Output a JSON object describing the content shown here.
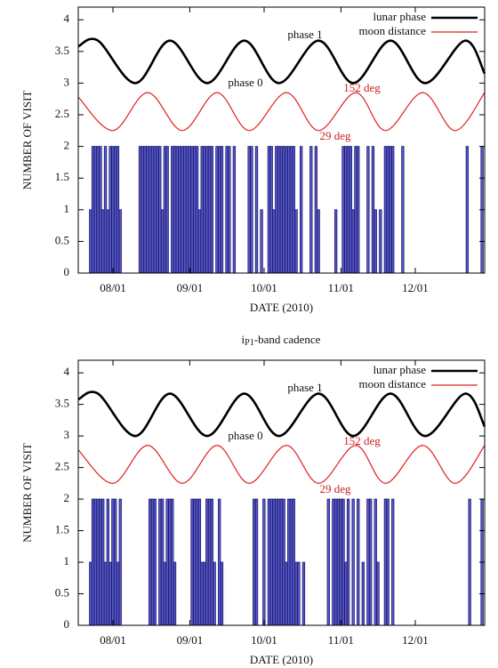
{
  "chart_data": [
    {
      "type": "bar",
      "xlabel": "DATE (2010)",
      "ylabel": "NUMBER OF VISIT",
      "xlim": [
        "07/18",
        "12/29"
      ],
      "xticks": [
        "08/01",
        "09/01",
        "10/01",
        "11/01",
        "12/01"
      ],
      "ylim": [
        0,
        4.2
      ],
      "yticks": [
        0,
        0.5,
        1,
        1.5,
        2,
        2.5,
        3,
        3.5,
        4
      ],
      "legend": "upper right",
      "annotations": [
        "phase 1",
        "phase 0",
        "152 deg",
        "29 deg"
      ],
      "series": [
        {
          "type": "line",
          "name": "lunar phase",
          "color": "#000000",
          "x": [
            "07/18",
            "07/26",
            "08/10",
            "08/24",
            "09/08",
            "09/23",
            "10/07",
            "10/23",
            "11/06",
            "11/21",
            "12/05",
            "12/21",
            "12/29"
          ],
          "values": [
            3.58,
            3.67,
            3.0,
            3.67,
            3.0,
            3.67,
            3.0,
            3.67,
            3.0,
            3.67,
            3.0,
            3.67,
            3.15
          ]
        },
        {
          "type": "line",
          "name": "moon distance",
          "color": "#e02020",
          "x": [
            "07/18",
            "08/01",
            "08/15",
            "08/29",
            "09/12",
            "09/25",
            "10/10",
            "10/23",
            "11/07",
            "11/19",
            "12/04",
            "12/17",
            "12/29"
          ],
          "values": [
            2.78,
            2.25,
            2.85,
            2.25,
            2.85,
            2.25,
            2.85,
            2.25,
            2.85,
            2.25,
            2.85,
            2.25,
            2.85
          ]
        },
        {
          "type": "bar",
          "color": "#5a5ac8",
          "x": [
            "07/23",
            "07/24",
            "07/25",
            "07/26",
            "07/27",
            "07/28",
            "07/29",
            "07/30",
            "07/31",
            "08/01",
            "08/02",
            "08/03",
            "08/04",
            "08/12",
            "08/13",
            "08/14",
            "08/15",
            "08/16",
            "08/17",
            "08/18",
            "08/19",
            "08/20",
            "08/21",
            "08/22",
            "08/23",
            "08/25",
            "08/26",
            "08/27",
            "08/28",
            "08/29",
            "08/30",
            "08/31",
            "09/01",
            "09/02",
            "09/03",
            "09/04",
            "09/05",
            "09/06",
            "09/07",
            "09/08",
            "09/09",
            "09/10",
            "09/12",
            "09/13",
            "09/14",
            "09/16",
            "09/17",
            "09/19",
            "09/25",
            "09/26",
            "09/28",
            "09/30",
            "10/03",
            "10/04",
            "10/05",
            "10/06",
            "10/07",
            "10/08",
            "10/09",
            "10/10",
            "10/11",
            "10/12",
            "10/13",
            "10/14",
            "10/16",
            "10/20",
            "10/22",
            "10/23",
            "10/30",
            "11/02",
            "11/03",
            "11/04",
            "11/05",
            "11/06",
            "11/07",
            "11/08",
            "11/12",
            "11/14",
            "11/15",
            "11/17",
            "11/19",
            "11/20",
            "11/21",
            "11/22",
            "11/26",
            "12/22",
            "12/28"
          ],
          "values": [
            1,
            2,
            2,
            2,
            2,
            1,
            2,
            1,
            2,
            2,
            2,
            2,
            1,
            2,
            2,
            2,
            2,
            2,
            2,
            2,
            2,
            2,
            1,
            2,
            2,
            2,
            2,
            2,
            2,
            2,
            2,
            2,
            2,
            2,
            2,
            2,
            1,
            2,
            2,
            2,
            2,
            2,
            2,
            2,
            2,
            2,
            2,
            2,
            2,
            2,
            2,
            1,
            2,
            2,
            1,
            2,
            2,
            2,
            2,
            2,
            2,
            2,
            2,
            1,
            2,
            2,
            2,
            1,
            1,
            2,
            2,
            2,
            2,
            1,
            2,
            2,
            2,
            2,
            1,
            1,
            2,
            2,
            2,
            2,
            2,
            2,
            2
          ]
        }
      ]
    },
    {
      "type": "bar",
      "title": {
        "base": "i",
        "sub": "P1",
        "rest": "-band cadence"
      },
      "xlabel": "DATE (2010)",
      "ylabel": "NUMBER OF VISIT",
      "xlim": [
        "07/18",
        "12/29"
      ],
      "xticks": [
        "08/01",
        "09/01",
        "10/01",
        "11/01",
        "12/01"
      ],
      "ylim": [
        0,
        4.2
      ],
      "yticks": [
        0,
        0.5,
        1,
        1.5,
        2,
        2.5,
        3,
        3.5,
        4
      ],
      "legend": "upper right",
      "annotations": [
        "phase 1",
        "phase 0",
        "152 deg",
        "29 deg"
      ],
      "series": [
        {
          "type": "line",
          "name": "lunar phase",
          "color": "#000000",
          "x": [
            "07/18",
            "07/26",
            "08/10",
            "08/24",
            "09/08",
            "09/23",
            "10/07",
            "10/23",
            "11/06",
            "11/21",
            "12/05",
            "12/21",
            "12/29"
          ],
          "values": [
            3.58,
            3.67,
            3.0,
            3.67,
            3.0,
            3.67,
            3.0,
            3.67,
            3.0,
            3.67,
            3.0,
            3.67,
            3.15
          ]
        },
        {
          "type": "line",
          "name": "moon distance",
          "color": "#e02020",
          "x": [
            "07/18",
            "08/01",
            "08/15",
            "08/29",
            "09/12",
            "09/25",
            "10/10",
            "10/23",
            "11/07",
            "11/19",
            "12/04",
            "12/17",
            "12/29"
          ],
          "values": [
            2.78,
            2.25,
            2.85,
            2.25,
            2.85,
            2.25,
            2.85,
            2.25,
            2.85,
            2.25,
            2.85,
            2.25,
            2.85
          ]
        },
        {
          "type": "bar",
          "color": "#5a5ac8",
          "x": [
            "07/23",
            "07/24",
            "07/25",
            "07/26",
            "07/27",
            "07/28",
            "07/29",
            "07/30",
            "07/31",
            "08/01",
            "08/02",
            "08/03",
            "08/04",
            "08/16",
            "08/17",
            "08/18",
            "08/20",
            "08/21",
            "08/22",
            "08/23",
            "08/24",
            "08/25",
            "08/26",
            "09/02",
            "09/03",
            "09/04",
            "09/05",
            "09/06",
            "09/07",
            "09/08",
            "09/09",
            "09/10",
            "09/11",
            "09/13",
            "09/14",
            "09/27",
            "09/28",
            "10/01",
            "10/03",
            "10/04",
            "10/05",
            "10/06",
            "10/07",
            "10/08",
            "10/09",
            "10/10",
            "10/11",
            "10/12",
            "10/13",
            "10/14",
            "10/15",
            "10/17",
            "10/27",
            "10/29",
            "10/30",
            "10/31",
            "11/01",
            "11/02",
            "11/03",
            "11/04",
            "11/06",
            "11/08",
            "11/10",
            "11/12",
            "11/13",
            "11/15",
            "11/16",
            "11/19",
            "11/20",
            "11/22",
            "12/23",
            "12/28"
          ],
          "values": [
            1,
            2,
            2,
            2,
            2,
            2,
            1,
            2,
            1,
            2,
            2,
            1,
            2,
            2,
            2,
            2,
            2,
            2,
            1,
            2,
            2,
            2,
            1,
            2,
            2,
            2,
            2,
            1,
            1,
            2,
            2,
            2,
            1,
            2,
            1,
            2,
            2,
            2,
            2,
            2,
            2,
            2,
            2,
            2,
            2,
            1,
            2,
            2,
            2,
            1,
            1,
            1,
            2,
            2,
            2,
            2,
            2,
            2,
            1,
            2,
            2,
            2,
            1,
            2,
            2,
            2,
            1,
            2,
            2,
            2,
            2,
            2
          ]
        }
      ]
    }
  ]
}
